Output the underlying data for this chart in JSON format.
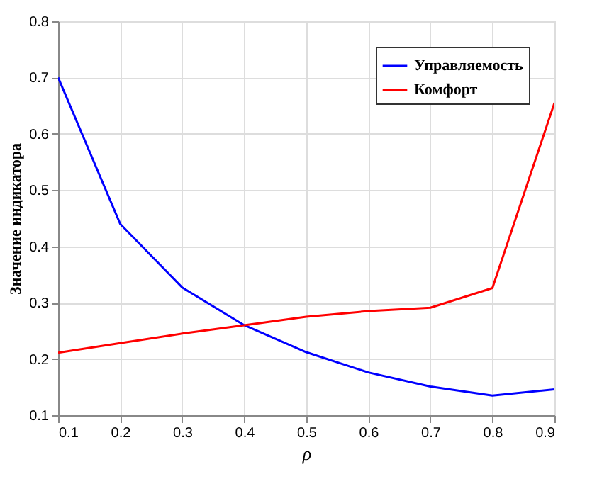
{
  "chart_data": {
    "type": "line",
    "xlabel": "ρ",
    "ylabel": "Значение индикатора",
    "x": [
      0.1,
      0.2,
      0.3,
      0.4,
      0.5,
      0.6,
      0.7,
      0.8,
      0.9
    ],
    "series": [
      {
        "name": "Управляемость",
        "color": "#0000ff",
        "values": [
          0.7,
          0.44,
          0.327,
          0.26,
          0.212,
          0.176,
          0.151,
          0.135,
          0.146
        ]
      },
      {
        "name": "Комфорт",
        "color": "#ff0000",
        "values": [
          0.211,
          0.228,
          0.245,
          0.26,
          0.275,
          0.285,
          0.291,
          0.326,
          0.655
        ]
      }
    ],
    "xlim": [
      0.1,
      0.9
    ],
    "xticks": [
      0.1,
      0.2,
      0.3,
      0.4,
      0.5,
      0.6,
      0.7,
      0.8,
      0.9
    ],
    "ylim": [
      0.1,
      0.8
    ],
    "yticks": [
      0.1,
      0.2,
      0.3,
      0.4,
      0.5,
      0.6,
      0.7,
      0.8
    ],
    "grid": true,
    "legend": "top right",
    "marker": "none",
    "line_style": "solid"
  }
}
